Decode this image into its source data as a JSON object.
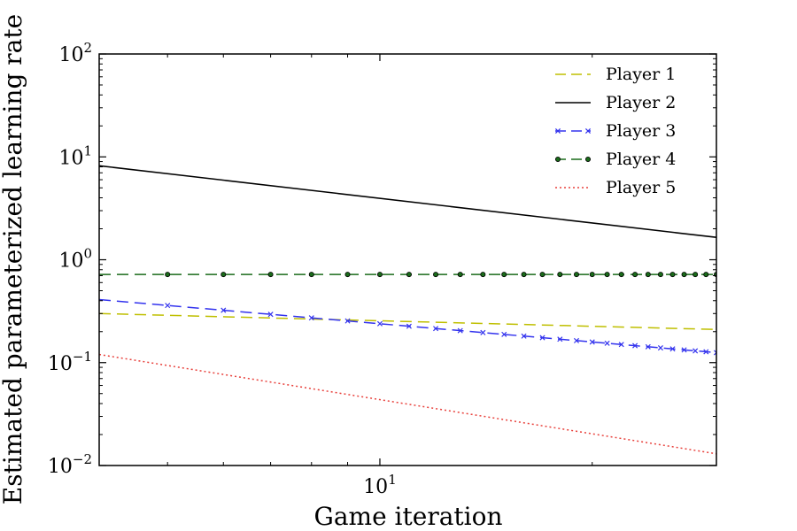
{
  "chart_data": {
    "type": "line",
    "title": "",
    "xlabel": "Game iteration",
    "ylabel": "Estimated parameterized learning rate",
    "x_scale": "log",
    "y_scale": "log",
    "xlim": [
      4,
      30
    ],
    "ylim": [
      0.01,
      100
    ],
    "grid": false,
    "legend_position": "top-right",
    "x_ticks": [
      {
        "value": 10,
        "base": "10",
        "exp": "1"
      }
    ],
    "y_ticks": [
      {
        "value": 0.01,
        "base": "10",
        "exp": "−2"
      },
      {
        "value": 0.1,
        "base": "10",
        "exp": "−1"
      },
      {
        "value": 1,
        "base": "10",
        "exp": "0"
      },
      {
        "value": 10,
        "base": "10",
        "exp": "1"
      },
      {
        "value": 100,
        "base": "10",
        "exp": "2"
      }
    ],
    "series": [
      {
        "name": "Player 1",
        "color": "#bfbf00",
        "style": "dashed",
        "marker": "none",
        "x": [
          4,
          30
        ],
        "y": [
          0.3,
          0.21
        ]
      },
      {
        "name": "Player 2",
        "color": "#000000",
        "style": "solid",
        "marker": "none",
        "x": [
          4,
          30
        ],
        "y": [
          8.2,
          1.65
        ]
      },
      {
        "name": "Player 3",
        "color": "#3333ee",
        "style": "dashed",
        "marker": "x",
        "x": [
          4,
          30
        ],
        "y": [
          0.41,
          0.125
        ],
        "marker_x": [
          5,
          6,
          7,
          8,
          9,
          10,
          11,
          12,
          13,
          14,
          15,
          16,
          17,
          18,
          19,
          20,
          21,
          22,
          23,
          24,
          25,
          26,
          27,
          28,
          29,
          30
        ]
      },
      {
        "name": "Player 4",
        "color": "#1a6b1a",
        "style": "dashed",
        "marker": "o",
        "x": [
          4,
          30
        ],
        "y": [
          0.72,
          0.72
        ],
        "marker_x": [
          5,
          6,
          7,
          8,
          9,
          10,
          11,
          12,
          13,
          14,
          15,
          16,
          17,
          18,
          19,
          20,
          21,
          22,
          23,
          24,
          25,
          26,
          27,
          28,
          29,
          30
        ]
      },
      {
        "name": "Player 5",
        "color": "#e8413c",
        "style": "dotted",
        "marker": "none",
        "x": [
          4,
          30
        ],
        "y": [
          0.12,
          0.013
        ]
      }
    ]
  }
}
